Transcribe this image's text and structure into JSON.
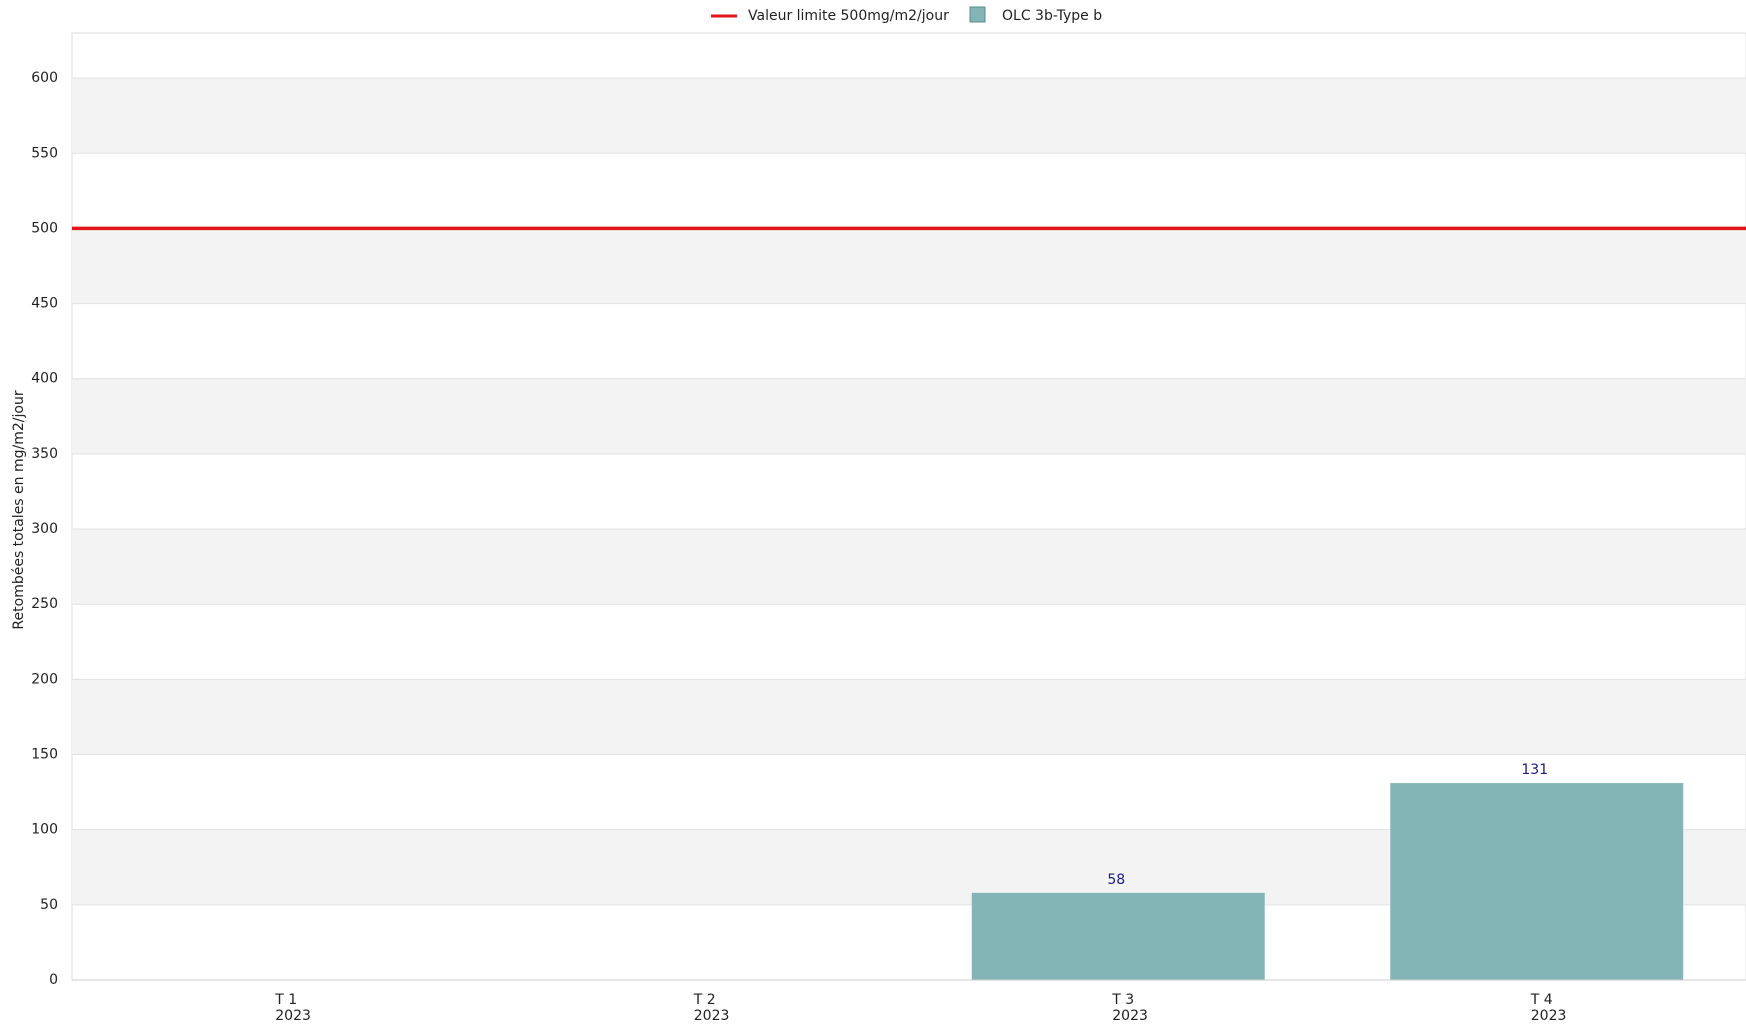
{
  "chart_data": {
    "type": "bar",
    "y_label": "Retombées totales en mg/m2/jour",
    "categories": [
      [
        "T 1",
        "2023"
      ],
      [
        "T 2",
        "2023"
      ],
      [
        "T 3",
        "2023"
      ],
      [
        "T 4",
        "2023"
      ]
    ],
    "series": [
      {
        "name": "OLC 3b-Type b",
        "color": "#84b5b6",
        "values": [
          null,
          null,
          58,
          131
        ]
      }
    ],
    "limit_line": {
      "name": "Valeur limite 500mg/m2/jour",
      "color": "#e0141a",
      "value": 500
    },
    "ylim": [
      0,
      630
    ],
    "yticks": [
      0,
      50,
      100,
      150,
      200,
      250,
      300,
      350,
      400,
      450,
      500,
      550,
      600
    ],
    "grid": true,
    "legend": "top"
  }
}
